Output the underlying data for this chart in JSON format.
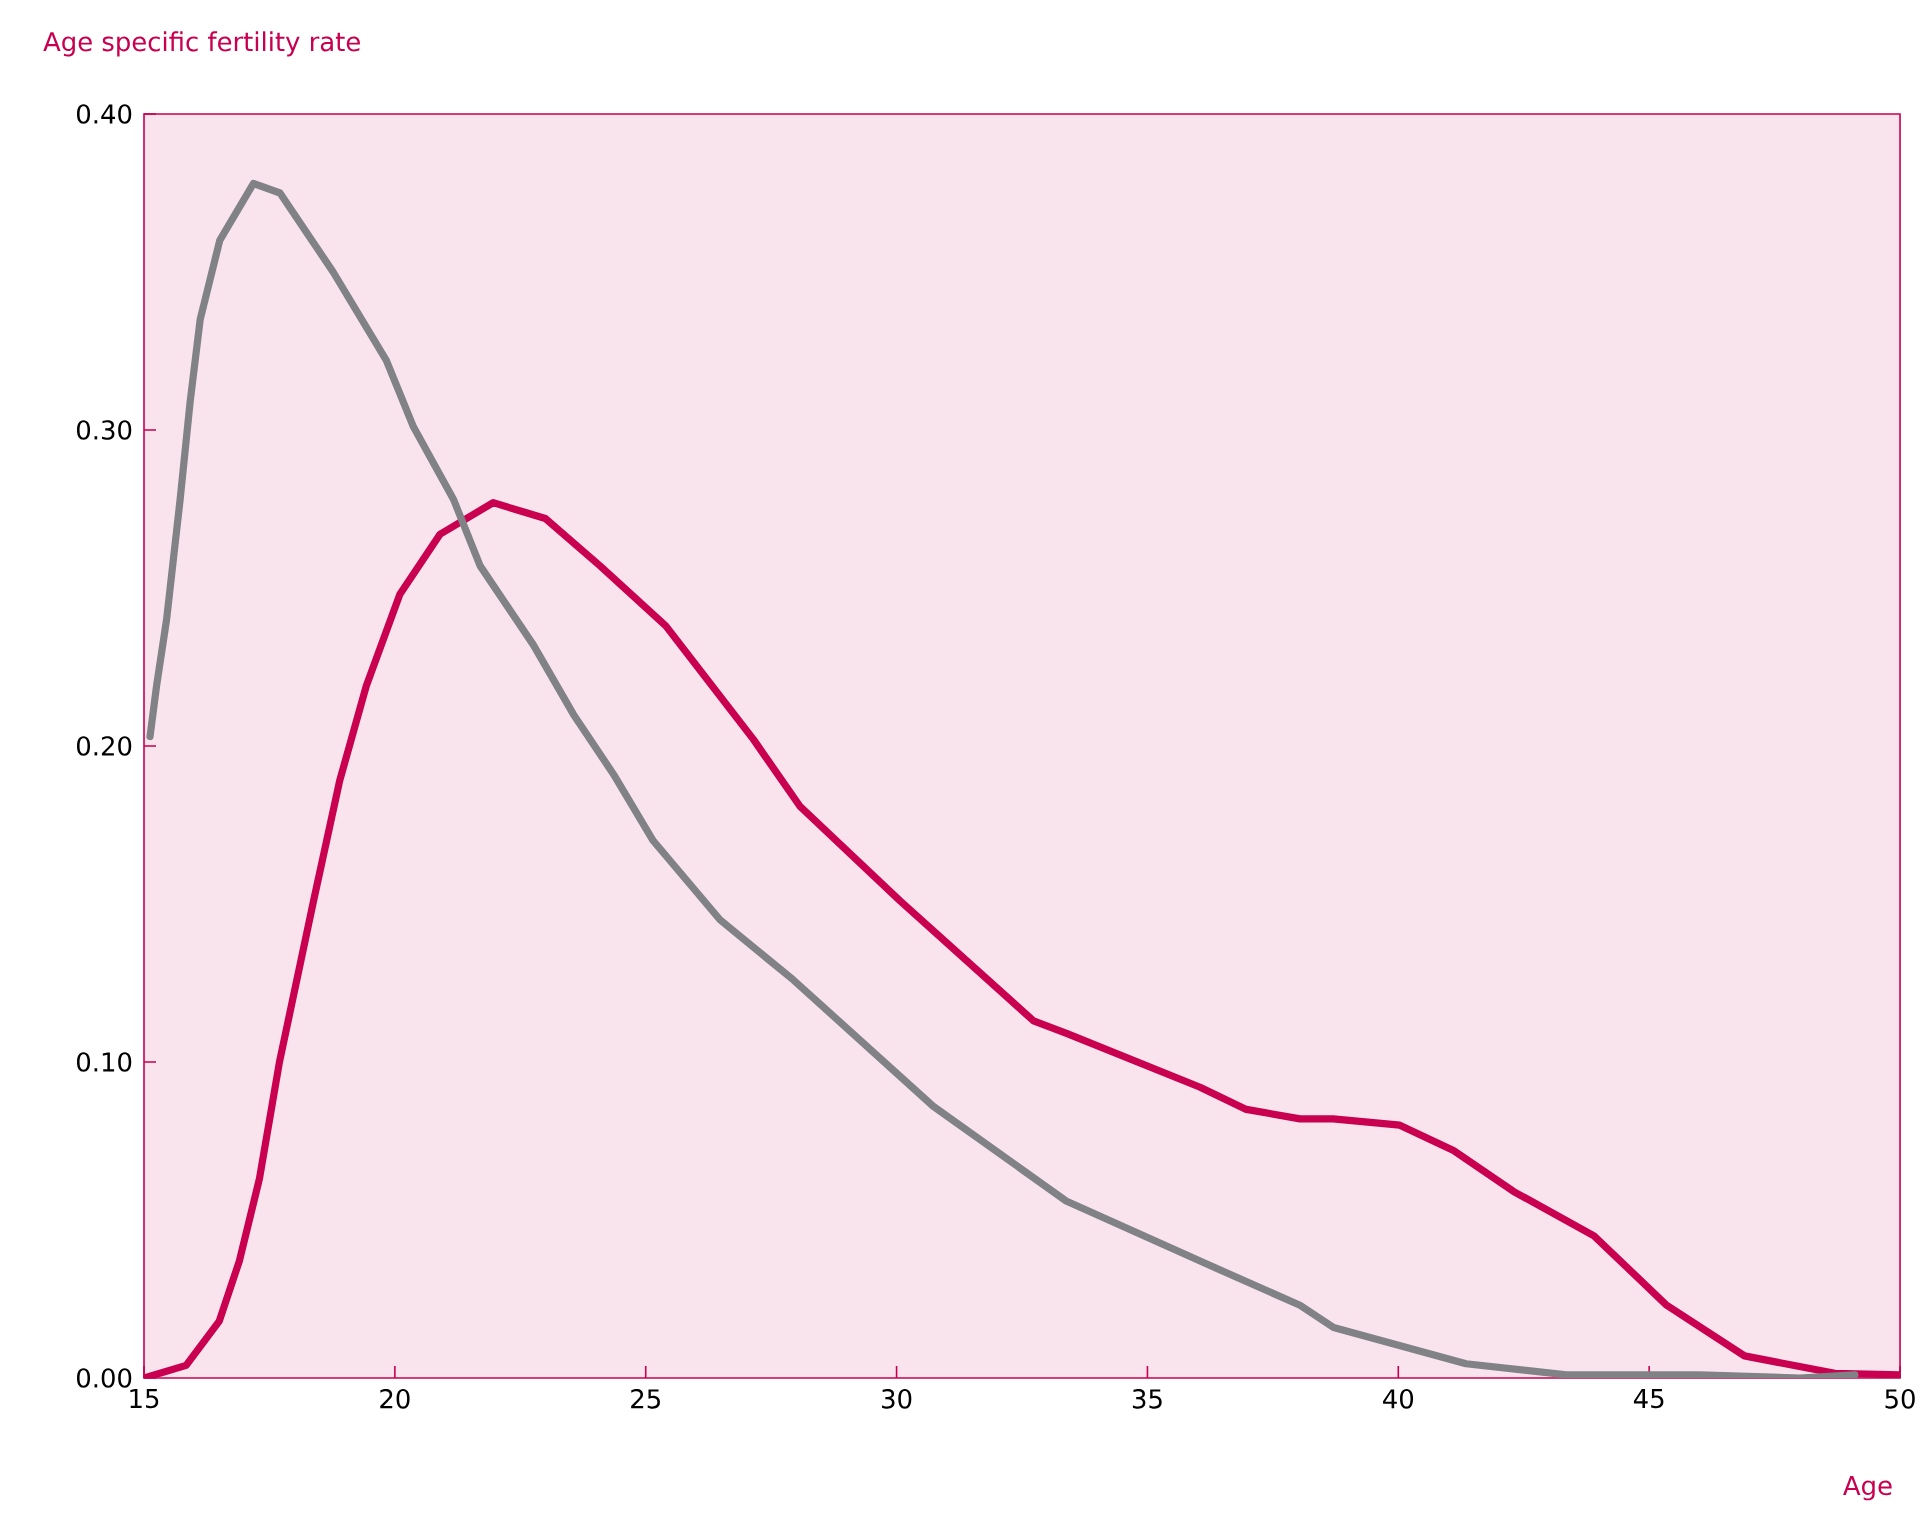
{
  "chart_data": {
    "type": "line",
    "xlabel": "Age",
    "ylabel": "Age specific fertility rate",
    "xlim": [
      15,
      50
    ],
    "ylim": [
      0,
      0.4
    ],
    "xticks": [
      15,
      20,
      25,
      30,
      35,
      40,
      45,
      50
    ],
    "yticks": [
      {
        "value": 0,
        "label": "0.00"
      },
      {
        "value": 0.1,
        "label": "0.10"
      },
      {
        "value": 0.2,
        "label": "0.20"
      },
      {
        "value": 0.3,
        "label": "0.30"
      },
      {
        "value": 0.4,
        "label": "0.40"
      }
    ],
    "series": [
      {
        "color": "#c8004f",
        "x": [
          15,
          15.84,
          16.5,
          16.9,
          17.3,
          17.7,
          18.38,
          18.9,
          19.43,
          20.1,
          20.9,
          21.96,
          23.0,
          24.09,
          25.4,
          27.15,
          28.07,
          30.07,
          32.73,
          33.4,
          36.05,
          36.97,
          38.04,
          38.7,
          40.03,
          41.1,
          42.3,
          43.9,
          45.35,
          46.9,
          48.7,
          50
        ],
        "values": [
          0.0,
          0.004,
          0.018,
          0.037,
          0.063,
          0.1,
          0.151,
          0.189,
          0.219,
          0.248,
          0.267,
          0.277,
          0.272,
          0.257,
          0.238,
          0.202,
          0.181,
          0.151,
          0.113,
          0.109,
          0.092,
          0.085,
          0.082,
          0.082,
          0.08,
          0.072,
          0.059,
          0.045,
          0.023,
          0.007,
          0.0015,
          0.001
        ]
      },
      {
        "color": "#808285",
        "x": [
          15.12,
          15.25,
          15.45,
          15.72,
          15.92,
          16.12,
          16.51,
          17.18,
          17.71,
          18.77,
          19.83,
          20.37,
          21.17,
          21.7,
          22.76,
          23.56,
          24.36,
          25.15,
          26.48,
          27.94,
          30.73,
          33.38,
          36.05,
          38.04,
          38.71,
          41.35,
          43.35,
          46.0,
          48.0,
          49.1
        ],
        "values": [
          0.203,
          0.219,
          0.24,
          0.278,
          0.309,
          0.335,
          0.36,
          0.378,
          0.375,
          0.35,
          0.322,
          0.301,
          0.278,
          0.257,
          0.232,
          0.21,
          0.191,
          0.17,
          0.145,
          0.126,
          0.086,
          0.056,
          0.037,
          0.023,
          0.016,
          0.0045,
          0.001,
          0.001,
          0.0,
          0.001
        ]
      }
    ]
  }
}
